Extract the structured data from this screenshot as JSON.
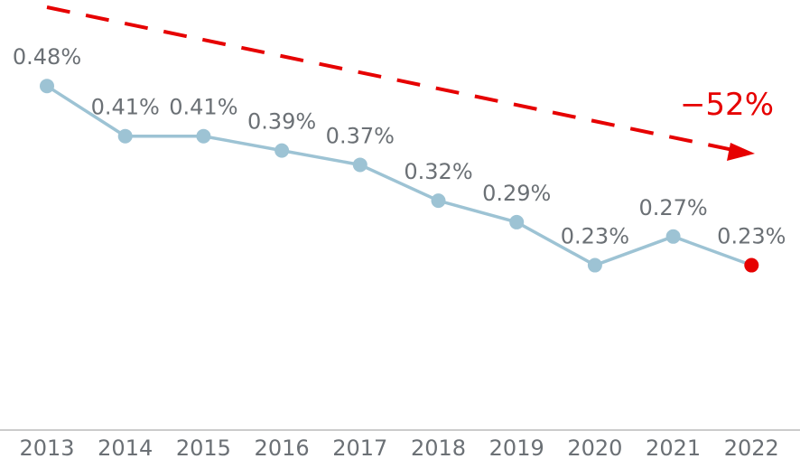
{
  "chart_data": {
    "type": "line",
    "title": "",
    "xlabel": "",
    "ylabel": "",
    "categories": [
      "2013",
      "2014",
      "2015",
      "2016",
      "2017",
      "2018",
      "2019",
      "2020",
      "2021",
      "2022"
    ],
    "values": [
      0.48,
      0.41,
      0.41,
      0.39,
      0.37,
      0.32,
      0.29,
      0.23,
      0.27,
      0.23
    ],
    "data_labels": [
      "0.48%",
      "0.41%",
      "0.41%",
      "0.39%",
      "0.37%",
      "0.32%",
      "0.29%",
      "0.23%",
      "0.27%",
      "0.23%"
    ],
    "ylim": [
      0,
      0.6
    ],
    "grid": false,
    "trend_annotation": "−52%",
    "colors": {
      "line": "#9dc3d4",
      "highlight_point": "#e60000",
      "trend_arrow": "#e60000",
      "label_text": "#6b7075",
      "axis": "#bbbbbb"
    }
  }
}
